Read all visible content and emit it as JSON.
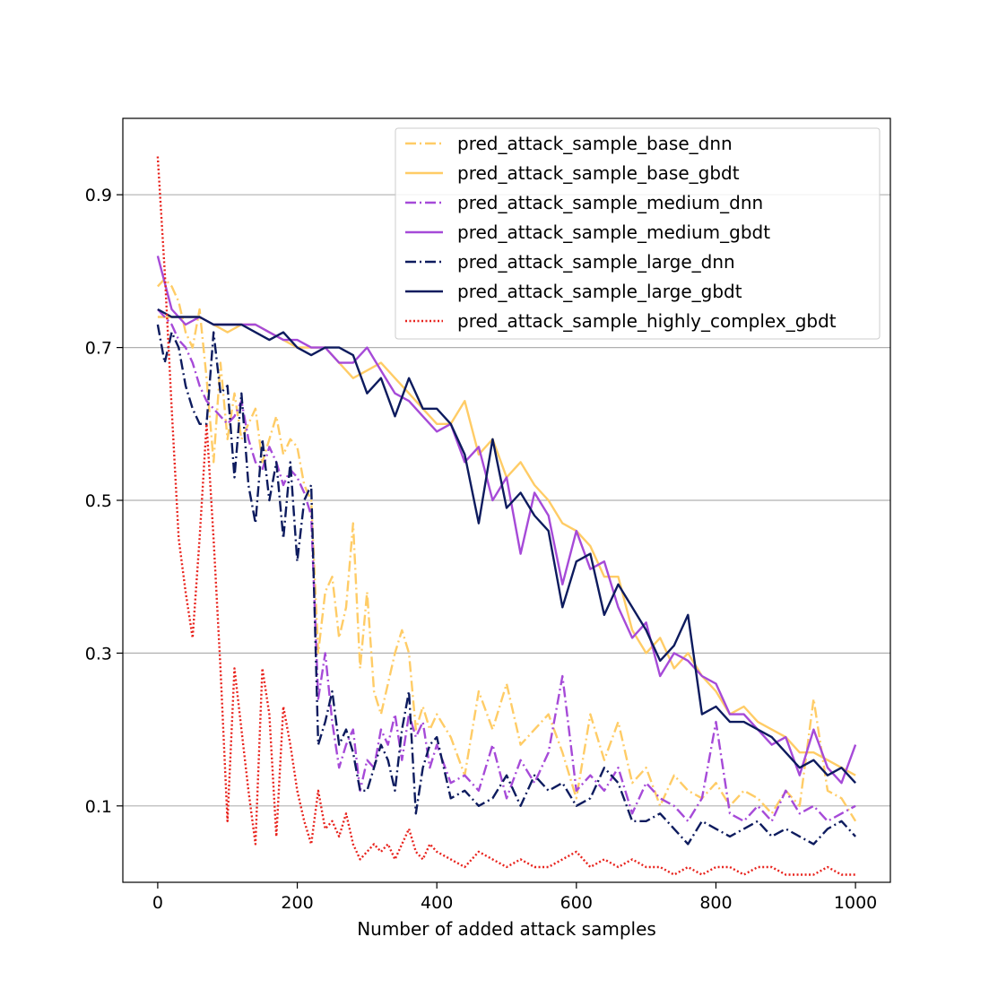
{
  "chart_data": {
    "type": "line",
    "title": "",
    "xlabel": "Number of added attack samples",
    "ylabel": "",
    "xlim": [
      -50,
      1050
    ],
    "ylim": [
      0.0,
      1.0
    ],
    "xticks": [
      0,
      200,
      400,
      600,
      800,
      1000
    ],
    "xtick_labels": [
      "0",
      "200",
      "400",
      "600",
      "800",
      "1000"
    ],
    "yticks": [
      0.1,
      0.3,
      0.5,
      0.7,
      0.9
    ],
    "ytick_labels": [
      "0.1",
      "0.3",
      "0.5",
      "0.7",
      "0.9"
    ],
    "grid": "horizontal",
    "legend_position": "top-right",
    "series": [
      {
        "name": "pred_attack_sample_base_dnn",
        "color": "#ffcc66",
        "style": "dashdot",
        "x": [
          0,
          10,
          20,
          30,
          40,
          50,
          60,
          70,
          80,
          90,
          100,
          110,
          120,
          130,
          140,
          150,
          160,
          170,
          180,
          190,
          200,
          210,
          220,
          230,
          240,
          250,
          260,
          270,
          280,
          290,
          300,
          310,
          320,
          330,
          340,
          350,
          360,
          370,
          380,
          390,
          400,
          420,
          440,
          460,
          480,
          500,
          520,
          540,
          560,
          580,
          600,
          620,
          640,
          660,
          680,
          700,
          720,
          740,
          760,
          780,
          800,
          820,
          840,
          860,
          880,
          900,
          920,
          940,
          960,
          980,
          1000
        ],
        "y": [
          0.78,
          0.79,
          0.78,
          0.76,
          0.72,
          0.7,
          0.75,
          0.66,
          0.55,
          0.68,
          0.58,
          0.64,
          0.58,
          0.6,
          0.62,
          0.55,
          0.58,
          0.61,
          0.56,
          0.58,
          0.57,
          0.52,
          0.5,
          0.3,
          0.38,
          0.4,
          0.32,
          0.36,
          0.47,
          0.28,
          0.38,
          0.25,
          0.22,
          0.26,
          0.3,
          0.33,
          0.3,
          0.2,
          0.23,
          0.2,
          0.22,
          0.19,
          0.14,
          0.25,
          0.2,
          0.26,
          0.18,
          0.2,
          0.22,
          0.17,
          0.11,
          0.22,
          0.16,
          0.21,
          0.13,
          0.15,
          0.1,
          0.14,
          0.12,
          0.11,
          0.13,
          0.1,
          0.12,
          0.11,
          0.09,
          0.12,
          0.1,
          0.24,
          0.12,
          0.11,
          0.08
        ]
      },
      {
        "name": "pred_attack_sample_base_gbdt",
        "color": "#ffcc66",
        "style": "solid",
        "x": [
          0,
          20,
          40,
          60,
          80,
          100,
          120,
          140,
          160,
          180,
          200,
          220,
          240,
          260,
          280,
          300,
          320,
          340,
          360,
          380,
          400,
          420,
          440,
          460,
          480,
          500,
          520,
          540,
          560,
          580,
          600,
          620,
          640,
          660,
          680,
          700,
          720,
          740,
          760,
          780,
          800,
          820,
          840,
          860,
          880,
          900,
          920,
          940,
          960,
          980,
          1000
        ],
        "y": [
          0.74,
          0.74,
          0.74,
          0.74,
          0.73,
          0.72,
          0.73,
          0.73,
          0.72,
          0.71,
          0.7,
          0.7,
          0.7,
          0.68,
          0.66,
          0.67,
          0.68,
          0.66,
          0.64,
          0.62,
          0.6,
          0.6,
          0.63,
          0.56,
          0.58,
          0.53,
          0.55,
          0.52,
          0.5,
          0.47,
          0.46,
          0.44,
          0.4,
          0.4,
          0.33,
          0.3,
          0.32,
          0.28,
          0.3,
          0.27,
          0.25,
          0.22,
          0.23,
          0.21,
          0.2,
          0.19,
          0.17,
          0.17,
          0.16,
          0.15,
          0.14
        ]
      },
      {
        "name": "pred_attack_sample_medium_dnn",
        "color": "#a64ad8",
        "style": "dashdot",
        "x": [
          0,
          10,
          20,
          30,
          40,
          50,
          60,
          70,
          80,
          90,
          100,
          110,
          120,
          130,
          140,
          150,
          160,
          170,
          180,
          190,
          200,
          210,
          220,
          230,
          240,
          250,
          260,
          270,
          280,
          290,
          300,
          310,
          320,
          330,
          340,
          350,
          360,
          370,
          380,
          390,
          400,
          420,
          440,
          460,
          480,
          500,
          520,
          540,
          560,
          580,
          600,
          620,
          640,
          660,
          680,
          700,
          720,
          740,
          760,
          780,
          800,
          820,
          840,
          860,
          880,
          900,
          920,
          940,
          960,
          980,
          1000
        ],
        "y": [
          0.75,
          0.74,
          0.73,
          0.71,
          0.7,
          0.68,
          0.65,
          0.63,
          0.62,
          0.61,
          0.6,
          0.61,
          0.63,
          0.58,
          0.55,
          0.54,
          0.57,
          0.55,
          0.52,
          0.54,
          0.53,
          0.51,
          0.48,
          0.24,
          0.3,
          0.21,
          0.15,
          0.18,
          0.2,
          0.12,
          0.16,
          0.15,
          0.2,
          0.18,
          0.22,
          0.16,
          0.22,
          0.19,
          0.21,
          0.15,
          0.18,
          0.13,
          0.14,
          0.12,
          0.18,
          0.11,
          0.16,
          0.13,
          0.17,
          0.27,
          0.12,
          0.14,
          0.12,
          0.15,
          0.09,
          0.13,
          0.11,
          0.1,
          0.08,
          0.11,
          0.21,
          0.09,
          0.08,
          0.1,
          0.08,
          0.12,
          0.09,
          0.1,
          0.08,
          0.09,
          0.1
        ]
      },
      {
        "name": "pred_attack_sample_medium_gbdt",
        "color": "#a64ad8",
        "style": "solid",
        "x": [
          0,
          20,
          40,
          60,
          80,
          100,
          120,
          140,
          160,
          180,
          200,
          220,
          240,
          260,
          280,
          300,
          320,
          340,
          360,
          380,
          400,
          420,
          440,
          460,
          480,
          500,
          520,
          540,
          560,
          580,
          600,
          620,
          640,
          660,
          680,
          700,
          720,
          740,
          760,
          780,
          800,
          820,
          840,
          860,
          880,
          900,
          920,
          940,
          960,
          980,
          1000
        ],
        "y": [
          0.82,
          0.75,
          0.73,
          0.74,
          0.73,
          0.73,
          0.73,
          0.73,
          0.72,
          0.71,
          0.71,
          0.7,
          0.7,
          0.68,
          0.68,
          0.7,
          0.67,
          0.64,
          0.63,
          0.61,
          0.59,
          0.6,
          0.55,
          0.57,
          0.5,
          0.53,
          0.43,
          0.51,
          0.48,
          0.39,
          0.46,
          0.41,
          0.42,
          0.36,
          0.32,
          0.34,
          0.27,
          0.3,
          0.29,
          0.27,
          0.26,
          0.22,
          0.22,
          0.2,
          0.18,
          0.19,
          0.14,
          0.2,
          0.15,
          0.13,
          0.18
        ]
      },
      {
        "name": "pred_attack_sample_large_dnn",
        "color": "#0d1b5e",
        "style": "dashdot",
        "x": [
          0,
          10,
          20,
          30,
          40,
          50,
          60,
          70,
          80,
          90,
          100,
          110,
          120,
          130,
          140,
          150,
          160,
          170,
          180,
          190,
          200,
          210,
          220,
          230,
          240,
          250,
          260,
          270,
          280,
          290,
          300,
          310,
          320,
          330,
          340,
          350,
          360,
          370,
          380,
          390,
          400,
          420,
          440,
          460,
          480,
          500,
          520,
          540,
          560,
          580,
          600,
          620,
          640,
          660,
          680,
          700,
          720,
          740,
          760,
          780,
          800,
          820,
          840,
          860,
          880,
          900,
          920,
          940,
          960,
          980,
          1000
        ],
        "y": [
          0.73,
          0.68,
          0.72,
          0.7,
          0.65,
          0.62,
          0.6,
          0.6,
          0.72,
          0.64,
          0.65,
          0.53,
          0.64,
          0.52,
          0.47,
          0.58,
          0.5,
          0.55,
          0.45,
          0.55,
          0.42,
          0.5,
          0.52,
          0.18,
          0.21,
          0.25,
          0.18,
          0.2,
          0.17,
          0.12,
          0.12,
          0.15,
          0.18,
          0.16,
          0.12,
          0.2,
          0.25,
          0.09,
          0.15,
          0.18,
          0.19,
          0.11,
          0.12,
          0.1,
          0.11,
          0.14,
          0.1,
          0.14,
          0.12,
          0.13,
          0.1,
          0.11,
          0.15,
          0.13,
          0.08,
          0.08,
          0.09,
          0.07,
          0.05,
          0.08,
          0.07,
          0.06,
          0.07,
          0.08,
          0.06,
          0.07,
          0.06,
          0.05,
          0.07,
          0.08,
          0.06
        ]
      },
      {
        "name": "pred_attack_sample_large_gbdt",
        "color": "#0d1b5e",
        "style": "solid",
        "x": [
          0,
          20,
          40,
          60,
          80,
          100,
          120,
          140,
          160,
          180,
          200,
          220,
          240,
          260,
          280,
          300,
          320,
          340,
          360,
          380,
          400,
          420,
          440,
          460,
          480,
          500,
          520,
          540,
          560,
          580,
          600,
          620,
          640,
          660,
          680,
          700,
          720,
          740,
          760,
          780,
          800,
          820,
          840,
          860,
          880,
          900,
          920,
          940,
          960,
          980,
          1000
        ],
        "y": [
          0.75,
          0.74,
          0.74,
          0.74,
          0.73,
          0.73,
          0.73,
          0.72,
          0.71,
          0.72,
          0.7,
          0.69,
          0.7,
          0.7,
          0.69,
          0.64,
          0.66,
          0.61,
          0.66,
          0.62,
          0.62,
          0.6,
          0.56,
          0.47,
          0.58,
          0.49,
          0.51,
          0.48,
          0.46,
          0.36,
          0.42,
          0.43,
          0.35,
          0.39,
          0.36,
          0.33,
          0.29,
          0.31,
          0.35,
          0.22,
          0.23,
          0.21,
          0.21,
          0.2,
          0.19,
          0.17,
          0.15,
          0.16,
          0.14,
          0.15,
          0.13
        ]
      },
      {
        "name": "pred_attack_sample_highly_complex_gbdt",
        "color": "#e8221c",
        "style": "dotted",
        "x": [
          0,
          10,
          20,
          30,
          40,
          50,
          60,
          70,
          80,
          90,
          100,
          110,
          120,
          130,
          140,
          150,
          160,
          170,
          180,
          190,
          200,
          210,
          220,
          230,
          240,
          250,
          260,
          270,
          280,
          290,
          300,
          310,
          320,
          330,
          340,
          350,
          360,
          370,
          380,
          390,
          400,
          420,
          440,
          460,
          480,
          500,
          520,
          540,
          560,
          580,
          600,
          620,
          640,
          660,
          680,
          700,
          720,
          740,
          760,
          780,
          800,
          820,
          840,
          860,
          880,
          900,
          920,
          940,
          960,
          980,
          1000
        ],
        "y": [
          0.95,
          0.8,
          0.62,
          0.45,
          0.38,
          0.32,
          0.45,
          0.6,
          0.45,
          0.28,
          0.08,
          0.28,
          0.2,
          0.12,
          0.05,
          0.28,
          0.22,
          0.06,
          0.23,
          0.18,
          0.12,
          0.08,
          0.05,
          0.12,
          0.07,
          0.08,
          0.06,
          0.09,
          0.05,
          0.03,
          0.04,
          0.05,
          0.04,
          0.05,
          0.03,
          0.05,
          0.07,
          0.04,
          0.03,
          0.05,
          0.04,
          0.03,
          0.02,
          0.04,
          0.03,
          0.02,
          0.03,
          0.02,
          0.02,
          0.03,
          0.04,
          0.02,
          0.03,
          0.02,
          0.03,
          0.02,
          0.02,
          0.01,
          0.02,
          0.01,
          0.02,
          0.02,
          0.01,
          0.02,
          0.02,
          0.01,
          0.01,
          0.01,
          0.02,
          0.01,
          0.01
        ]
      }
    ]
  }
}
